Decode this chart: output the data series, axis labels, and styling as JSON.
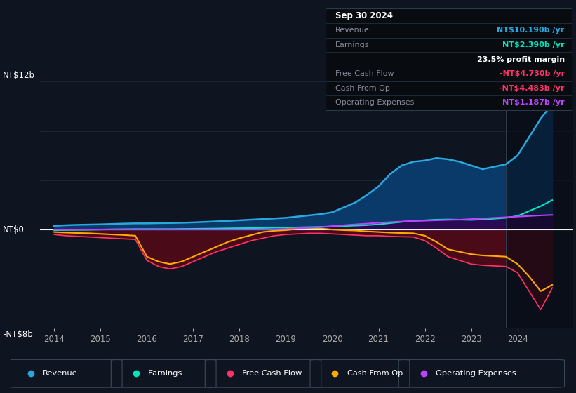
{
  "background_color": "#0e1420",
  "plot_bg_color": "#0e1420",
  "ylabel_top": "NT$12b",
  "ylabel_zero": "NT$0",
  "ylabel_bottom": "-NT$8b",
  "ylim": [
    -8,
    14
  ],
  "xlim_start": 2013.7,
  "xlim_end": 2025.2,
  "x_years": [
    2014.0,
    2014.25,
    2014.5,
    2014.75,
    2015.0,
    2015.25,
    2015.5,
    2015.75,
    2016.0,
    2016.25,
    2016.5,
    2016.75,
    2017.0,
    2017.25,
    2017.5,
    2017.75,
    2018.0,
    2018.25,
    2018.5,
    2018.75,
    2019.0,
    2019.25,
    2019.5,
    2019.75,
    2020.0,
    2020.25,
    2020.5,
    2020.75,
    2021.0,
    2021.25,
    2021.5,
    2021.75,
    2022.0,
    2022.25,
    2022.5,
    2022.75,
    2023.0,
    2023.25,
    2023.5,
    2023.75,
    2024.0,
    2024.25,
    2024.5,
    2024.75
  ],
  "revenue": [
    0.3,
    0.35,
    0.38,
    0.4,
    0.42,
    0.45,
    0.48,
    0.5,
    0.5,
    0.52,
    0.53,
    0.55,
    0.58,
    0.62,
    0.66,
    0.7,
    0.75,
    0.8,
    0.85,
    0.9,
    0.95,
    1.05,
    1.15,
    1.25,
    1.4,
    1.8,
    2.2,
    2.8,
    3.5,
    4.5,
    5.2,
    5.5,
    5.6,
    5.8,
    5.7,
    5.5,
    5.2,
    4.9,
    5.1,
    5.3,
    6.0,
    7.5,
    9.0,
    10.19
  ],
  "earnings": [
    -0.05,
    -0.04,
    -0.03,
    -0.02,
    0.0,
    0.02,
    0.03,
    0.04,
    0.04,
    0.04,
    0.04,
    0.05,
    0.06,
    0.07,
    0.08,
    0.1,
    0.11,
    0.12,
    0.13,
    0.15,
    0.16,
    0.18,
    0.2,
    0.22,
    0.24,
    0.28,
    0.32,
    0.36,
    0.42,
    0.52,
    0.62,
    0.7,
    0.75,
    0.8,
    0.82,
    0.8,
    0.78,
    0.82,
    0.88,
    0.95,
    1.1,
    1.5,
    1.9,
    2.39
  ],
  "free_cash_flow": [
    -0.4,
    -0.5,
    -0.55,
    -0.6,
    -0.65,
    -0.7,
    -0.75,
    -0.8,
    -2.5,
    -3.0,
    -3.2,
    -3.0,
    -2.6,
    -2.2,
    -1.8,
    -1.5,
    -1.2,
    -0.9,
    -0.7,
    -0.5,
    -0.4,
    -0.35,
    -0.3,
    -0.3,
    -0.35,
    -0.4,
    -0.45,
    -0.5,
    -0.5,
    -0.55,
    -0.58,
    -0.6,
    -0.9,
    -1.5,
    -2.2,
    -2.5,
    -2.8,
    -2.9,
    -2.95,
    -3.0,
    -3.5,
    -5.0,
    -6.5,
    -4.73
  ],
  "cash_from_op": [
    -0.2,
    -0.25,
    -0.28,
    -0.3,
    -0.35,
    -0.4,
    -0.44,
    -0.5,
    -2.2,
    -2.6,
    -2.8,
    -2.6,
    -2.2,
    -1.8,
    -1.4,
    -1.0,
    -0.7,
    -0.45,
    -0.2,
    -0.1,
    -0.05,
    0.05,
    0.1,
    0.08,
    0.0,
    -0.05,
    -0.08,
    -0.15,
    -0.2,
    -0.25,
    -0.28,
    -0.3,
    -0.5,
    -1.0,
    -1.6,
    -1.8,
    -2.0,
    -2.1,
    -2.15,
    -2.2,
    -2.8,
    -3.8,
    -5.0,
    -4.483
  ],
  "operating_expenses": [
    0.0,
    0.0,
    0.0,
    0.0,
    0.0,
    0.0,
    0.0,
    0.0,
    0.0,
    0.0,
    0.0,
    0.0,
    0.0,
    0.0,
    0.0,
    0.0,
    0.0,
    0.0,
    0.0,
    0.0,
    0.05,
    0.1,
    0.15,
    0.2,
    0.28,
    0.35,
    0.42,
    0.48,
    0.55,
    0.6,
    0.65,
    0.7,
    0.72,
    0.75,
    0.78,
    0.8,
    0.85,
    0.9,
    0.95,
    1.0,
    1.05,
    1.1,
    1.15,
    1.187
  ],
  "revenue_color": "#29a8e0",
  "earnings_color": "#00e5c0",
  "free_cash_flow_color": "#ff3366",
  "cash_from_op_color": "#ffaa00",
  "operating_expenses_color": "#bb44ff",
  "revenue_fill_color": "#0a3a6a",
  "negative_fill_color_dark": "#4a0a18",
  "op_exp_fill_color": "#2a0a55",
  "info_box_bg": "#080c10",
  "info_box": {
    "date": "Sep 30 2024",
    "revenue_label": "Revenue",
    "revenue_value": "NT$10.190b",
    "revenue_color": "#29a8e0",
    "earnings_label": "Earnings",
    "earnings_value": "NT$2.390b",
    "earnings_color": "#00e5c0",
    "margin_text_bold": "23.5%",
    "margin_text_rest": " profit margin",
    "fcf_label": "Free Cash Flow",
    "fcf_value": "-NT$4.730b",
    "fcf_color": "#ff3366",
    "cashop_label": "Cash From Op",
    "cashop_value": "-NT$4.483b",
    "cashop_color": "#ff3366",
    "opex_label": "Operating Expenses",
    "opex_value": "NT$1.187b",
    "opex_color": "#bb44ff"
  },
  "legend_items": [
    {
      "label": "Revenue",
      "color": "#29a8e0"
    },
    {
      "label": "Earnings",
      "color": "#00e5c0"
    },
    {
      "label": "Free Cash Flow",
      "color": "#ff3366"
    },
    {
      "label": "Cash From Op",
      "color": "#ffaa00"
    },
    {
      "label": "Operating Expenses",
      "color": "#bb44ff"
    }
  ],
  "shade_start": 2023.75,
  "x_ticks": [
    2014,
    2015,
    2016,
    2017,
    2018,
    2019,
    2020,
    2021,
    2022,
    2023,
    2024
  ]
}
